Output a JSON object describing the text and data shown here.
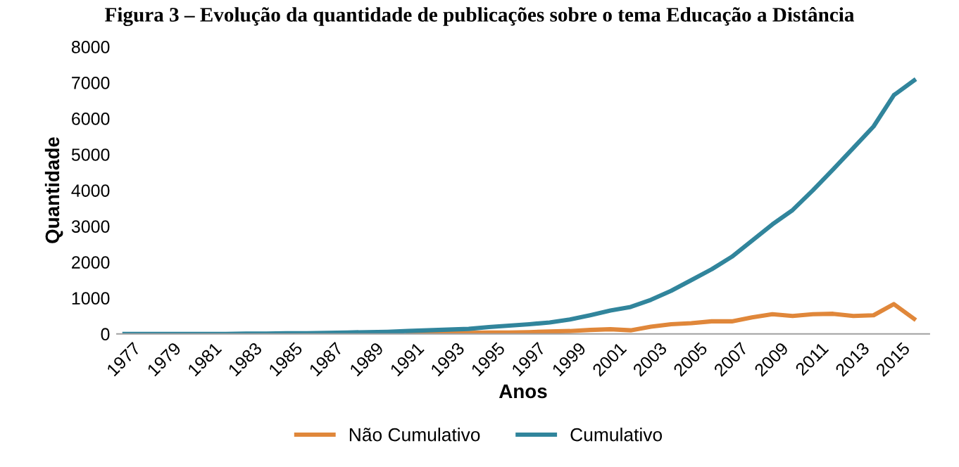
{
  "chart_data": {
    "type": "line",
    "title": "Figura 3 – Evolução da quantidade de publicações sobre o tema Educação a Distância",
    "xlabel": "Anos",
    "ylabel": "Quantidade",
    "categories": [
      "1977",
      null,
      "1979",
      null,
      "1981",
      null,
      "1983",
      null,
      "1985",
      null,
      "1987",
      null,
      "1989",
      null,
      "1991",
      null,
      "1993",
      null,
      "1995",
      null,
      "1997",
      null,
      "1999",
      null,
      "2001",
      null,
      "2003",
      null,
      "2005",
      null,
      "2007",
      null,
      "2009",
      null,
      "2011",
      null,
      "2013",
      null,
      "2015",
      null
    ],
    "series": [
      {
        "name": "Não Cumulativo",
        "color": "#e0873a",
        "values": [
          null,
          null,
          null,
          null,
          null,
          null,
          null,
          null,
          null,
          null,
          null,
          null,
          null,
          null,
          20,
          20,
          30,
          30,
          40,
          40,
          50,
          70,
          80,
          110,
          130,
          100,
          200,
          270,
          300,
          350,
          350,
          460,
          550,
          500,
          550,
          560,
          500,
          520,
          830,
          420
        ]
      },
      {
        "name": "Cumulativo",
        "color": "#31859c",
        "values": [
          0,
          0,
          0,
          0,
          0,
          0,
          10,
          10,
          20,
          20,
          30,
          40,
          50,
          60,
          80,
          100,
          120,
          140,
          190,
          230,
          270,
          320,
          400,
          520,
          650,
          750,
          950,
          1200,
          1500,
          1800,
          2150,
          2600,
          3050,
          3450,
          4000,
          4580,
          5180,
          5780,
          6650,
          7060
        ]
      }
    ],
    "ylim": [
      0,
      8000
    ],
    "yticks": [
      0,
      1000,
      2000,
      3000,
      4000,
      5000,
      6000,
      7000,
      8000
    ],
    "grid": false,
    "legend": "bottom"
  }
}
